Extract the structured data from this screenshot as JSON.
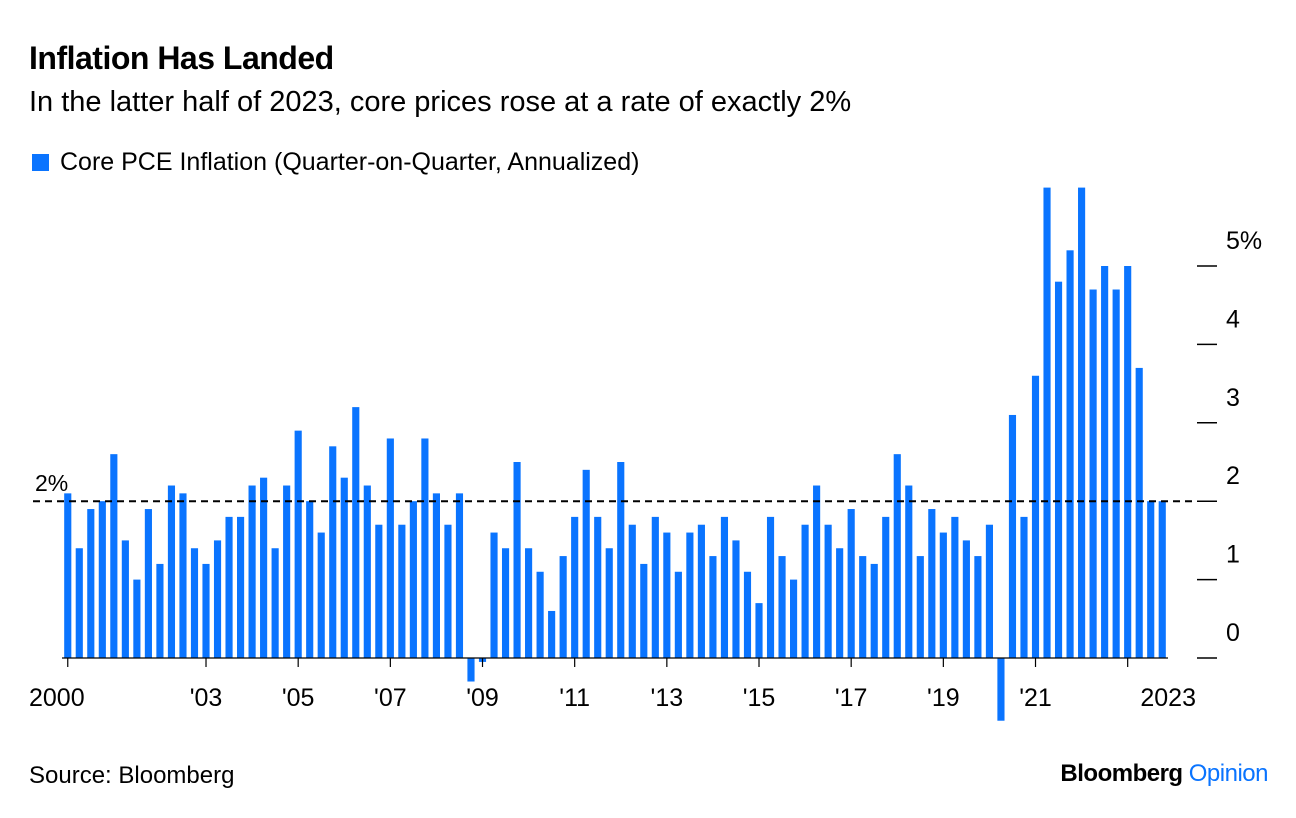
{
  "title": "Inflation Has Landed",
  "subtitle": "In the latter half of 2023, core prices rose at a rate of exactly 2%",
  "legend": {
    "label": "Core PCE Inflation (Quarter-on-Quarter, Annualized)"
  },
  "source": "Source: Bloomberg",
  "brand": {
    "name": "Bloomberg",
    "product": "Opinion"
  },
  "colors": {
    "bar": "#0a74ff",
    "brand_opinion": "#0a74ff",
    "text": "#000000"
  },
  "chart_data": {
    "type": "bar",
    "series": [
      {
        "name": "Core PCE Inflation (Quarter-on-Quarter, Annualized)"
      }
    ],
    "x_start": "2000 Q1",
    "frequency": "quarterly",
    "values": [
      2.1,
      1.4,
      1.9,
      2.0,
      2.6,
      1.5,
      1.0,
      1.9,
      1.2,
      2.2,
      2.1,
      1.4,
      1.2,
      1.5,
      1.8,
      1.8,
      2.2,
      2.3,
      1.4,
      2.2,
      2.9,
      2.0,
      1.6,
      2.7,
      2.3,
      3.2,
      2.2,
      1.7,
      2.8,
      1.7,
      2.0,
      2.8,
      2.1,
      1.7,
      2.1,
      -0.3,
      -0.05,
      1.6,
      1.4,
      2.5,
      1.4,
      1.1,
      0.6,
      1.3,
      1.8,
      2.4,
      1.8,
      1.4,
      2.5,
      1.7,
      1.2,
      1.8,
      1.6,
      1.1,
      1.6,
      1.7,
      1.3,
      1.8,
      1.5,
      1.1,
      0.7,
      1.8,
      1.3,
      1.0,
      1.7,
      2.2,
      1.7,
      1.4,
      1.9,
      1.3,
      1.2,
      1.8,
      2.6,
      2.2,
      1.3,
      1.9,
      1.6,
      1.8,
      1.5,
      1.3,
      1.7,
      -0.8,
      3.1,
      1.8,
      3.6,
      6.0,
      4.8,
      5.2,
      6.0,
      4.7,
      5.0,
      4.7,
      5.0,
      3.7,
      2.0,
      2.0
    ],
    "x_tick_labels": [
      "2000",
      "'03",
      "'05",
      "'07",
      "'09",
      "'11",
      "'13",
      "'15",
      "'17",
      "'19",
      "'21",
      "2023"
    ],
    "y_ticks": [
      "0",
      "1",
      "2",
      "3",
      "4",
      "5%"
    ],
    "ylim": [
      -0.8,
      6.0
    ],
    "reference_line": {
      "value": 2.0,
      "label": "2%",
      "style": "dashed"
    },
    "y_axis_side": "right",
    "grid": false
  }
}
